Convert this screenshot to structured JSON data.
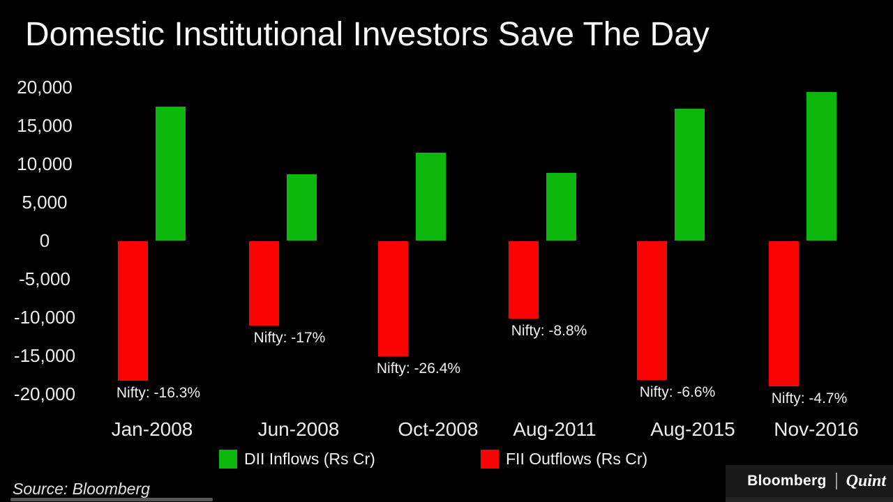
{
  "chart_data": {
    "type": "bar",
    "title": "Domestic Institutional Investors Save The Day",
    "categories": [
      "Jan-2008",
      "Jun-2008",
      "Oct-2008",
      "Aug-2011",
      "Aug-2015",
      "Nov-2016"
    ],
    "series": [
      {
        "name": "DII Inflows (Rs Cr)",
        "color": "#0db80d",
        "values": [
          17500,
          8600,
          11500,
          8800,
          17200,
          19400
        ]
      },
      {
        "name": "FII Outflows (Rs Cr)",
        "color": "#fa0303",
        "values": [
          -18200,
          -11000,
          -15000,
          -10100,
          -18100,
          -18900
        ]
      }
    ],
    "annotations": [
      "Nifty: -16.3%",
      "Nifty: -17%",
      "Nifty: -26.4%",
      "Nifty: -8.8%",
      "Nifty: -6.6%",
      "Nifty: -4.7%"
    ],
    "ylim": [
      -20000,
      20000
    ],
    "ytick_interval": 5000,
    "ytick_labels": [
      "20,000",
      "15,000",
      "10,000",
      "5,000",
      "0",
      "-5,000",
      "-10,000",
      "-15,000",
      "-20,000"
    ],
    "grid": false,
    "legend_position": "bottom",
    "background_color": "#000000"
  },
  "legend": {
    "dii_label": "DII Inflows (Rs Cr)",
    "fii_label": "FII Outflows (Rs Cr)"
  },
  "source_note": "Source: Bloomberg",
  "logo": {
    "bloomberg": "Bloomberg",
    "quint": "Quint"
  }
}
